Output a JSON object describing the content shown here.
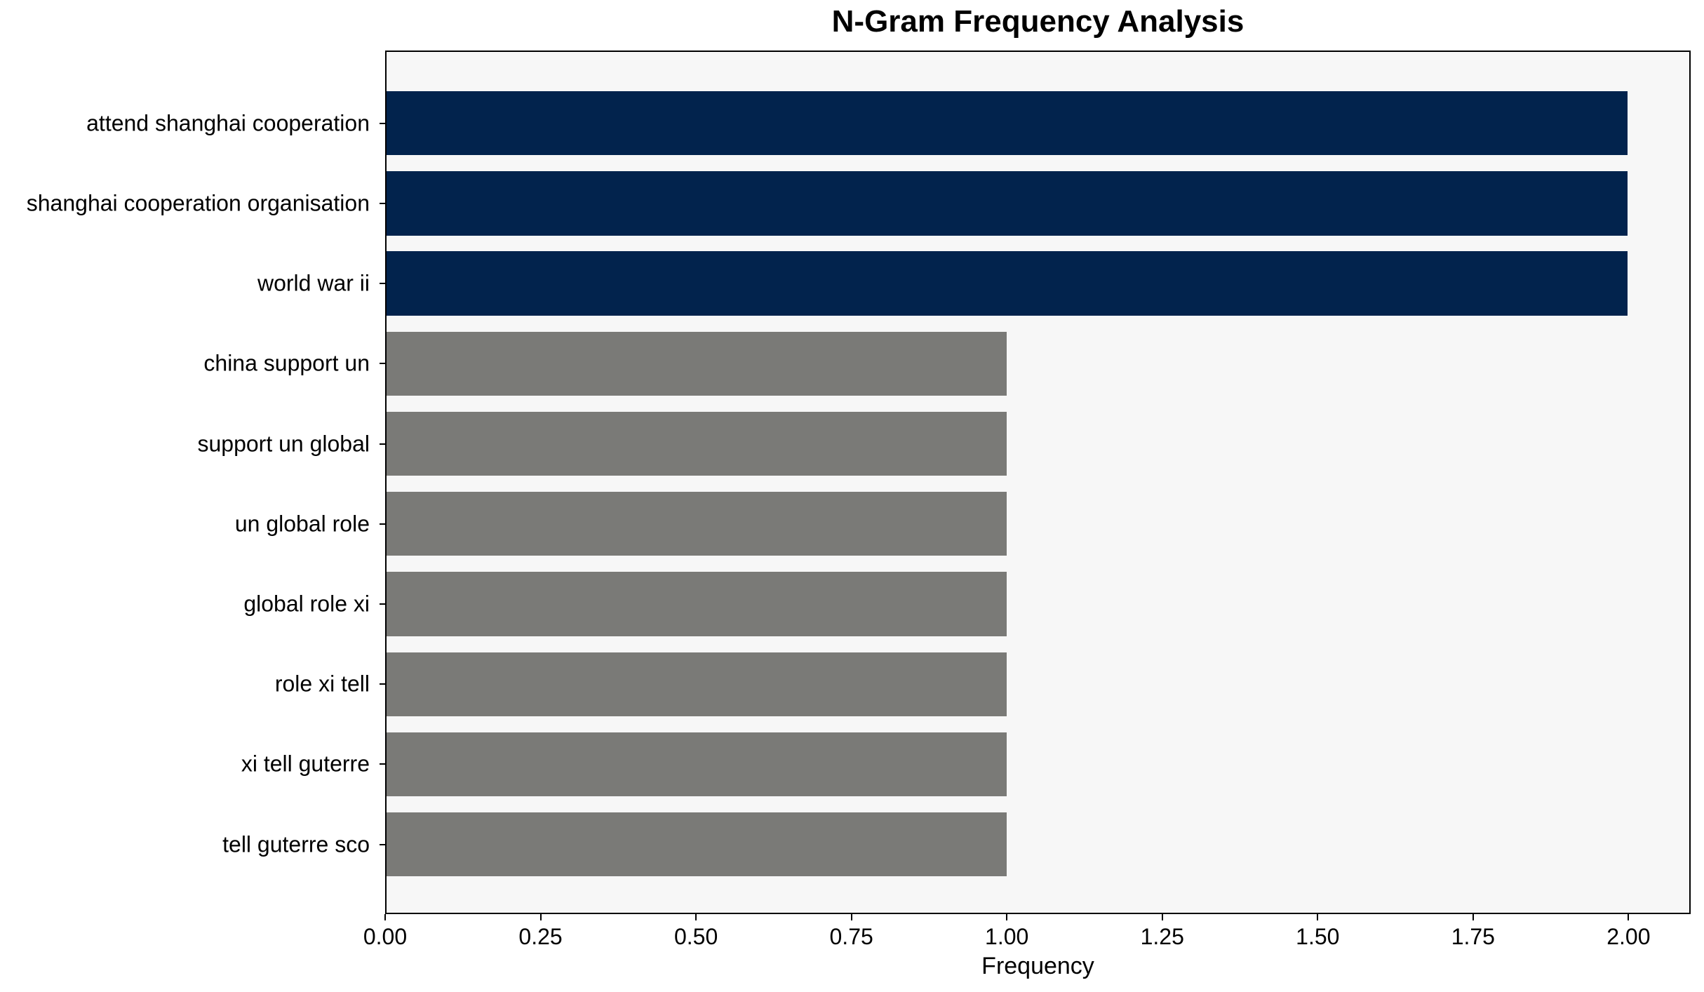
{
  "chart_data": {
    "type": "bar",
    "orientation": "horizontal",
    "title": "N-Gram Frequency Analysis",
    "xlabel": "Frequency",
    "ylabel": "",
    "categories": [
      "attend shanghai cooperation",
      "shanghai cooperation organisation",
      "world war ii",
      "china support un",
      "support un global",
      "un global role",
      "global role xi",
      "role xi tell",
      "xi tell guterre",
      "tell guterre sco"
    ],
    "values": [
      2,
      2,
      2,
      1,
      1,
      1,
      1,
      1,
      1,
      1
    ],
    "bar_colors": [
      "#02234d",
      "#02234d",
      "#02234d",
      "#7a7a77",
      "#7a7a77",
      "#7a7a77",
      "#7a7a77",
      "#7a7a77",
      "#7a7a77",
      "#7a7a77"
    ],
    "xlim": [
      0,
      2.1
    ],
    "xtick_values": [
      0,
      0.25,
      0.5,
      0.75,
      1.0,
      1.25,
      1.5,
      1.75,
      2.0
    ],
    "xtick_labels": [
      "0.00",
      "0.25",
      "0.50",
      "0.75",
      "1.00",
      "1.25",
      "1.50",
      "1.75",
      "2.00"
    ],
    "grid": false,
    "legend": null,
    "colors": {
      "highlight_bar": "#02234d",
      "base_bar": "#7a7a77",
      "plot_background": "#f7f7f7",
      "figure_background": "#ffffff",
      "spine": "#000000",
      "text": "#000000"
    }
  }
}
